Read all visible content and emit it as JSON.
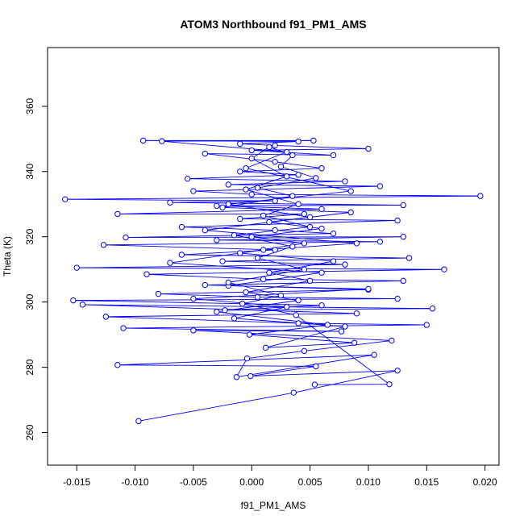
{
  "chart_data": {
    "type": "line",
    "title": "ATOM3 Northbound f91_PM1_AMS",
    "xlabel": "f91_PM1_AMS",
    "ylabel": "Theta (K)",
    "xlim": [
      -0.0175,
      0.0212
    ],
    "ylim": [
      250,
      378
    ],
    "xticks": [
      -0.015,
      -0.01,
      -0.005,
      0.0,
      0.005,
      0.01,
      0.015,
      0.02
    ],
    "xtick_labels": [
      "-0.015",
      "-0.010",
      "-0.005",
      "0.000",
      "0.005",
      "0.010",
      "0.015",
      "0.020"
    ],
    "yticks": [
      260,
      280,
      300,
      320,
      340,
      360
    ],
    "ytick_labels": [
      "260",
      "280",
      "300",
      "320",
      "340",
      "360"
    ],
    "grid": false,
    "series": [
      {
        "color": "#0000ff",
        "marker": "open-circle",
        "points": [
          [
            -0.0097,
            263.5
          ],
          [
            0.0036,
            272.2
          ],
          [
            0.0125,
            279.0
          ],
          [
            -0.0001,
            277.3
          ],
          [
            0.0055,
            280.3
          ],
          [
            -0.0115,
            280.7
          ],
          [
            0.0105,
            283.8
          ],
          [
            -0.0013,
            277.0
          ],
          [
            -0.0004,
            282.7
          ],
          [
            0.0045,
            285.0
          ],
          [
            0.012,
            288.2
          ],
          [
            -0.005,
            291.3
          ],
          [
            0.0077,
            291.0
          ],
          [
            -0.011,
            292.0
          ],
          [
            0.015,
            293.0
          ],
          [
            0.004,
            293.5
          ],
          [
            -0.0125,
            295.5
          ],
          [
            0.009,
            296.5
          ],
          [
            -0.0145,
            299.2
          ],
          [
            0.0155,
            298.0
          ],
          [
            -0.0023,
            297.5
          ],
          [
            0.006,
            299.0
          ],
          [
            -0.0153,
            300.5
          ],
          [
            0.0125,
            301.0
          ],
          [
            0.0005,
            301.5
          ],
          [
            -0.008,
            302.5
          ],
          [
            0.01,
            303.8
          ],
          [
            -0.004,
            305.2
          ],
          [
            0.013,
            306.5
          ],
          [
            0.001,
            307.0
          ],
          [
            -0.009,
            308.5
          ],
          [
            0.0165,
            310.0
          ],
          [
            -0.015,
            310.5
          ],
          [
            0.008,
            311.5
          ],
          [
            -0.0025,
            312.5
          ],
          [
            0.0135,
            313.5
          ],
          [
            -0.006,
            314.5
          ],
          [
            0.002,
            316.0
          ],
          [
            -0.0127,
            317.5
          ],
          [
            0.011,
            318.5
          ],
          [
            -0.003,
            319.0
          ],
          [
            0.013,
            320.0
          ],
          [
            -0.0108,
            319.8
          ],
          [
            0.007,
            321.0
          ],
          [
            0.002,
            322.0
          ],
          [
            -0.006,
            323.0
          ],
          [
            0.0125,
            325.0
          ],
          [
            -0.001,
            325.5
          ],
          [
            0.0045,
            327.0
          ],
          [
            -0.0115,
            327.0
          ],
          [
            0.006,
            328.5
          ],
          [
            -0.003,
            329.5
          ],
          [
            0.013,
            329.7
          ],
          [
            -0.007,
            330.5
          ],
          [
            0.002,
            331.0
          ],
          [
            -0.016,
            331.5
          ],
          [
            0.0196,
            332.5
          ],
          [
            0.0,
            333.0
          ],
          [
            -0.005,
            334.0
          ],
          [
            0.011,
            335.5
          ],
          [
            -0.002,
            336.0
          ],
          [
            0.008,
            337.0
          ],
          [
            -0.0055,
            337.8
          ],
          [
            0.004,
            339.0
          ],
          [
            -0.001,
            340.0
          ],
          [
            0.006,
            341.0
          ],
          [
            0.002,
            343.0
          ],
          [
            -0.004,
            345.5
          ],
          [
            0.007,
            345.0
          ],
          [
            0.0,
            346.5
          ],
          [
            0.01,
            347.0
          ],
          [
            0.002,
            348.0
          ],
          [
            -0.001,
            348.5
          ],
          [
            0.004,
            349.2
          ],
          [
            -0.0093,
            349.5
          ],
          [
            0.0053,
            349.5
          ],
          [
            -0.0077,
            349.3
          ],
          [
            0.003,
            346.0
          ],
          [
            -0.0005,
            341.0
          ],
          [
            0.0085,
            334.0
          ],
          [
            -0.002,
            330.0
          ],
          [
            0.005,
            326.0
          ],
          [
            -0.004,
            322.0
          ],
          [
            0.009,
            318.0
          ],
          [
            0.001,
            316.0
          ],
          [
            -0.007,
            312.0
          ],
          [
            0.006,
            309.0
          ],
          [
            -0.002,
            305.0
          ],
          [
            0.01,
            304.0
          ],
          [
            -0.005,
            301.0
          ],
          [
            0.003,
            298.5
          ],
          [
            -0.0015,
            295.0
          ],
          [
            0.008,
            292.5
          ],
          [
            0.0012,
            286.0
          ],
          [
            0.0088,
            287.5
          ],
          [
            -0.0002,
            290.0
          ],
          [
            0.0065,
            293.0
          ],
          [
            -0.003,
            297.0
          ],
          [
            0.004,
            300.5
          ],
          [
            -0.0005,
            303.0
          ],
          [
            0.005,
            306.5
          ],
          [
            0.0015,
            309.0
          ],
          [
            0.007,
            312.5
          ],
          [
            -0.001,
            315.0
          ],
          [
            0.0045,
            318.0
          ],
          [
            0.0,
            320.0
          ],
          [
            0.006,
            322.5
          ],
          [
            0.0015,
            324.5
          ],
          [
            0.0085,
            327.5
          ],
          [
            -0.0025,
            329.0
          ],
          [
            0.0035,
            332.5
          ],
          [
            0.0005,
            335.0
          ],
          [
            0.0055,
            338.0
          ],
          [
            0.0025,
            341.5
          ],
          [
            0.0035,
            345.0
          ],
          [
            0.0015,
            347.5
          ],
          [
            0.0,
            344.0
          ],
          [
            0.003,
            338.5
          ],
          [
            -0.0005,
            334.5
          ],
          [
            0.004,
            330.0
          ],
          [
            0.001,
            326.5
          ],
          [
            0.005,
            323.0
          ],
          [
            -0.0015,
            320.5
          ],
          [
            0.0035,
            317.0
          ],
          [
            0.0005,
            313.5
          ],
          [
            0.0045,
            310.0
          ],
          [
            -0.002,
            306.0
          ],
          [
            0.0025,
            302.0
          ],
          [
            -0.0008,
            299.5
          ],
          [
            0.0038,
            296.0
          ],
          [
            0.0118,
            274.8
          ],
          [
            0.0054,
            274.7
          ]
        ]
      }
    ]
  }
}
